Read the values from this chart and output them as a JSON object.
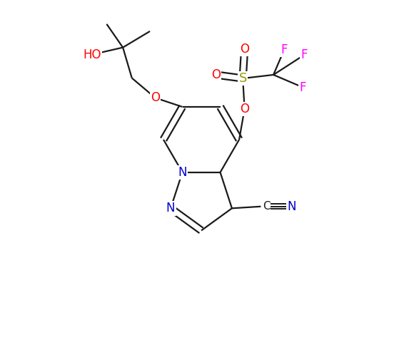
{
  "bg_color": "#ffffff",
  "figsize": [
    5.59,
    5.08
  ],
  "dpi": 100,
  "bond_color": "#1a1a1a",
  "bond_lw": 1.6,
  "atom_colors": {
    "O": "#ff0000",
    "N": "#0000cc",
    "S": "#999900",
    "F": "#ff00ff",
    "C": "#1a1a1a"
  },
  "font_size": 12
}
